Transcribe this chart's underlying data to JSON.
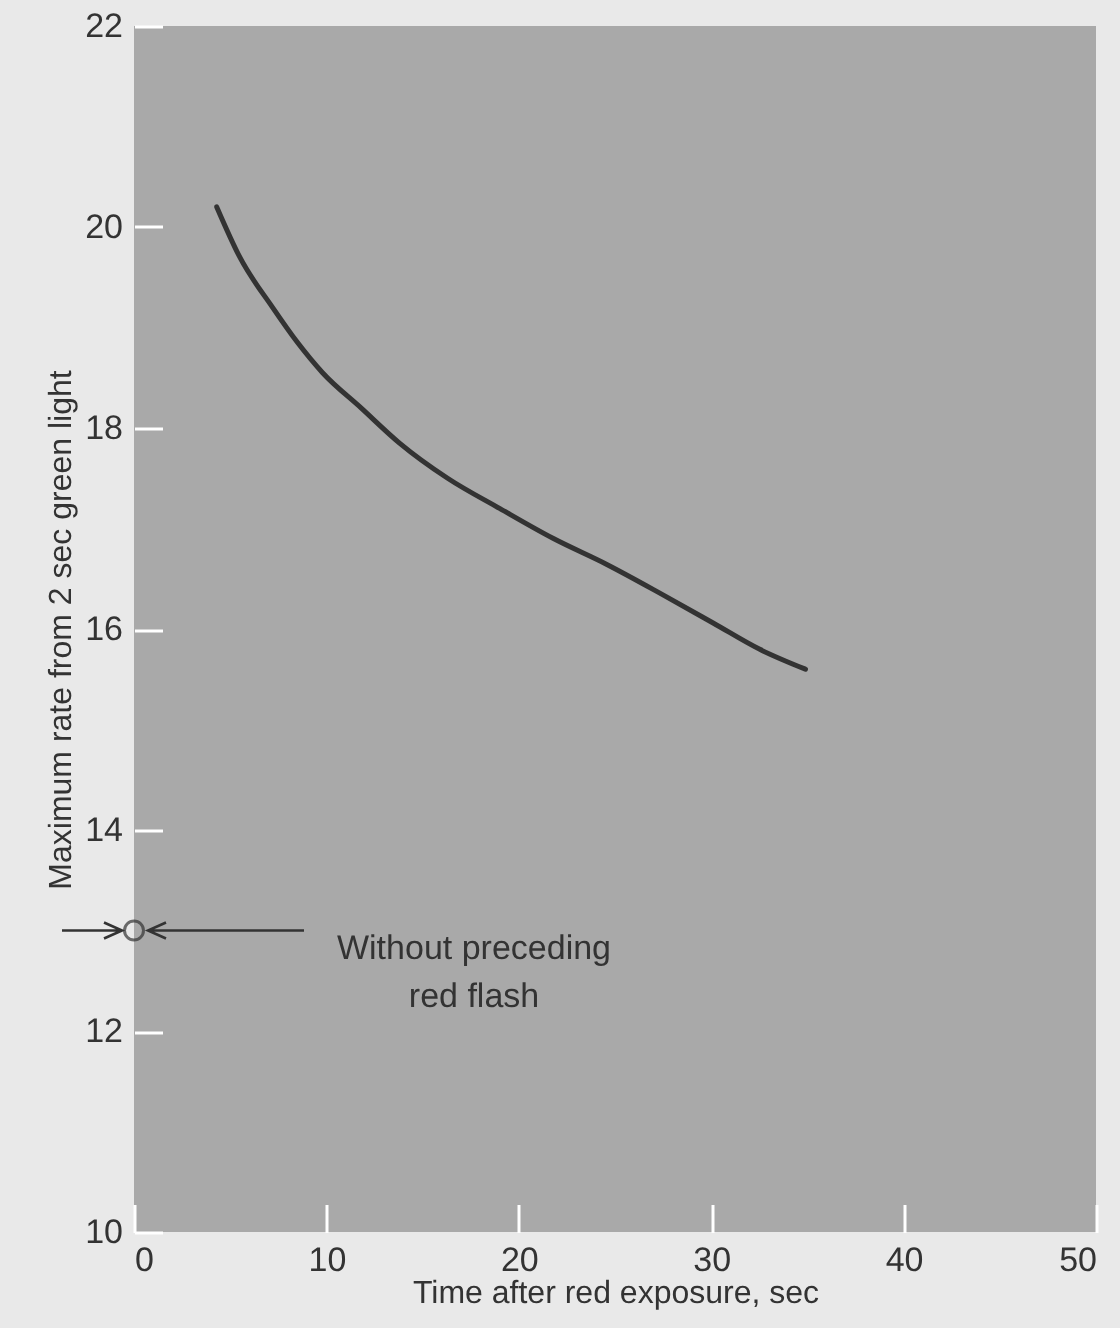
{
  "chart_data": {
    "type": "line",
    "xlabel": "Time after red exposure, sec",
    "ylabel": "Maximum rate from 2 sec green light",
    "xlim": [
      0,
      50
    ],
    "ylim": [
      10,
      22
    ],
    "xticks": [
      0,
      10,
      20,
      30,
      40,
      50
    ],
    "yticks": [
      10,
      12,
      14,
      16,
      18,
      20,
      22
    ],
    "annotations": [
      "Without preceding red flash"
    ],
    "series": [
      {
        "type": "line",
        "color": "#333333",
        "line_style": "solid",
        "marker": "none",
        "x": [
          4.3,
          5.5,
          7.2,
          8.5,
          9.8,
          11.8,
          13.8,
          16.3,
          19.0,
          21.8,
          24.6,
          27.4,
          30.1,
          32.5,
          34.9
        ],
        "values": [
          20.2,
          19.7,
          19.2,
          18.85,
          18.55,
          18.2,
          17.85,
          17.5,
          17.2,
          16.9,
          16.64,
          16.35,
          16.06,
          15.8,
          15.6
        ]
      },
      {
        "type": "scatter",
        "color": "#333333",
        "marker": "circle",
        "x": [
          0
        ],
        "values": [
          13
        ]
      }
    ]
  }
}
